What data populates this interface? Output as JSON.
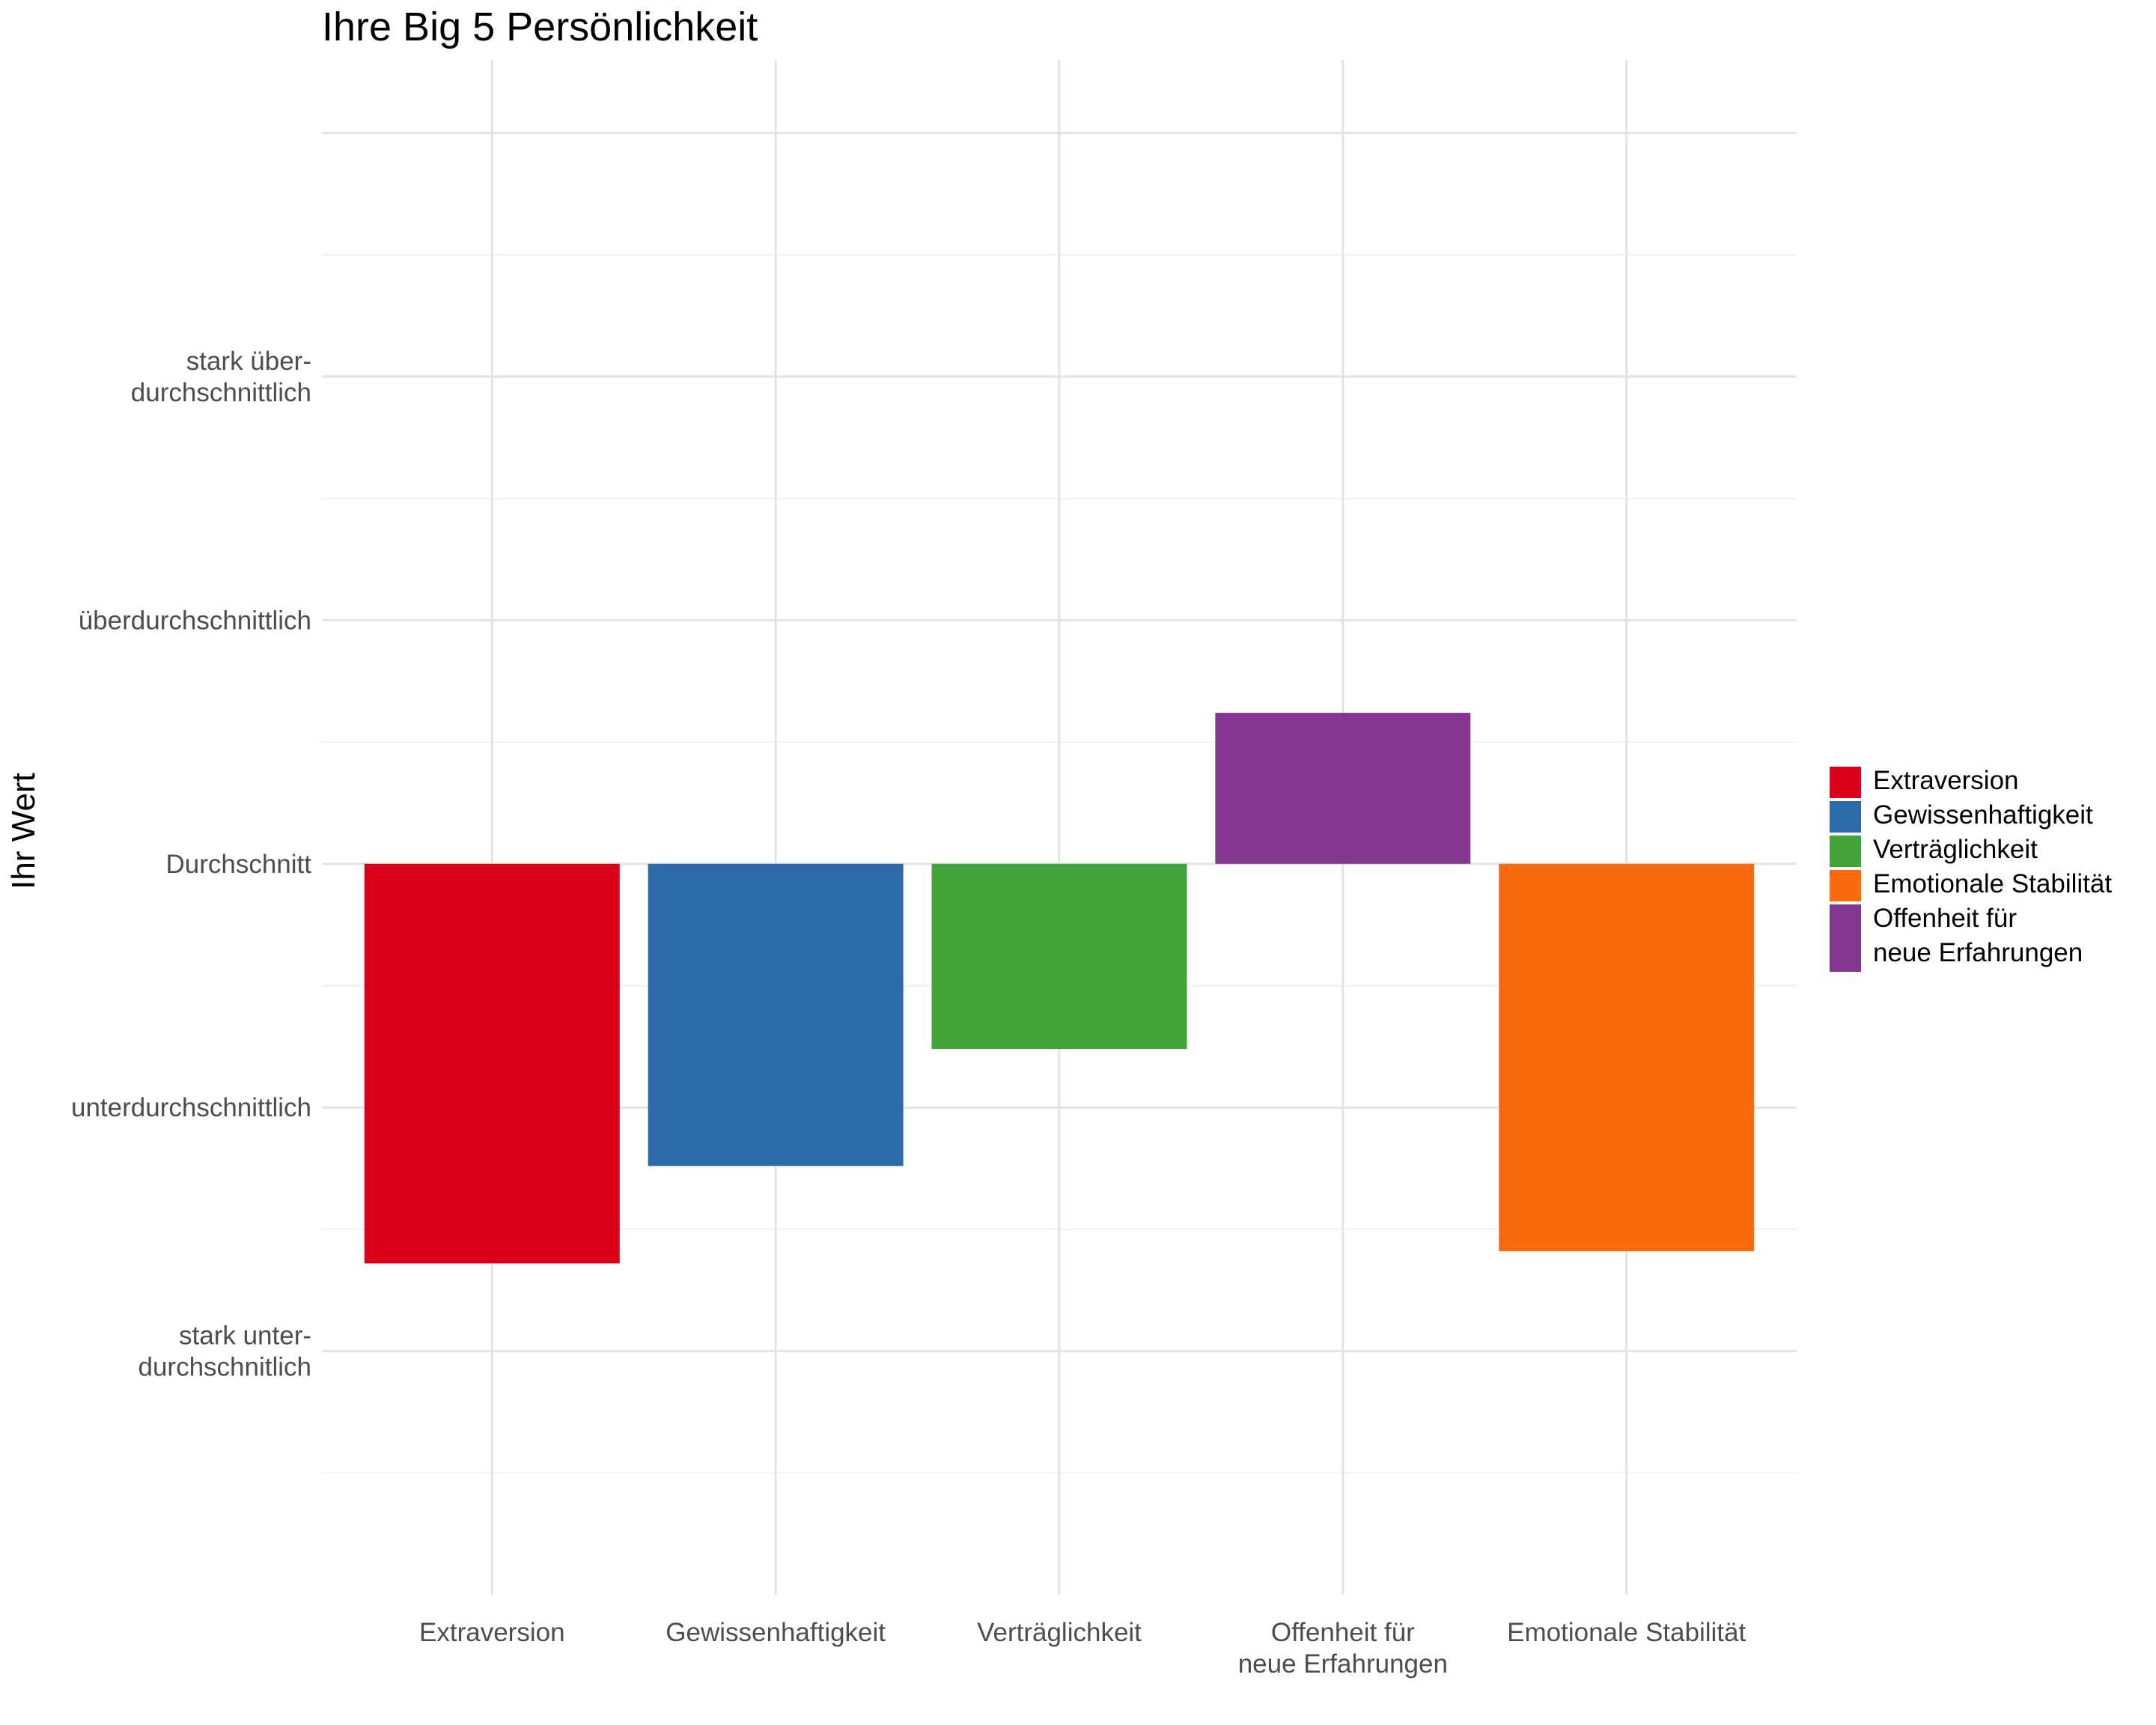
{
  "chart_data": {
    "type": "bar",
    "title": "Ihre Big 5 Persönlichkeit",
    "xlabel": "",
    "ylabel": "Ihr Wert",
    "categories": [
      [
        "Extraversion"
      ],
      [
        "Gewissenhaftigkeit"
      ],
      [
        "Verträglichkeit"
      ],
      [
        "Offenheit für",
        "neue Erfahrungen"
      ],
      [
        "Emotionale Stabilität"
      ]
    ],
    "values": [
      -1.64,
      -1.24,
      -0.76,
      0.62,
      -1.59
    ],
    "colors": [
      "#DC001A",
      "#2C6AA9",
      "#42A33B",
      "#84378F",
      "#FA6A0E"
    ],
    "ylim": [
      -3.0,
      3.3
    ],
    "yticks": [
      {
        "value": 2,
        "label": [
          "stark über-",
          "durchschnittlich"
        ]
      },
      {
        "value": 1,
        "label": [
          "überdurchschnittlich"
        ]
      },
      {
        "value": 0,
        "label": [
          "Durchschnitt"
        ]
      },
      {
        "value": -1,
        "label": [
          "unterdurchschnittlich"
        ]
      },
      {
        "value": -2,
        "label": [
          "stark unter-",
          "durchschnitlich"
        ]
      }
    ],
    "legend": {
      "position": "right",
      "entries": [
        {
          "label": [
            "Extraversion"
          ],
          "color": "#DC001A"
        },
        {
          "label": [
            "Gewissenhaftigkeit"
          ],
          "color": "#2C6AA9"
        },
        {
          "label": [
            "Verträglichkeit"
          ],
          "color": "#42A33B"
        },
        {
          "label": [
            "Emotionale Stabilität"
          ],
          "color": "#FA6A0E"
        },
        {
          "label": [
            "Offenheit für",
            "neue Erfahrungen"
          ],
          "color": "#84378F"
        }
      ]
    },
    "grid": true
  }
}
